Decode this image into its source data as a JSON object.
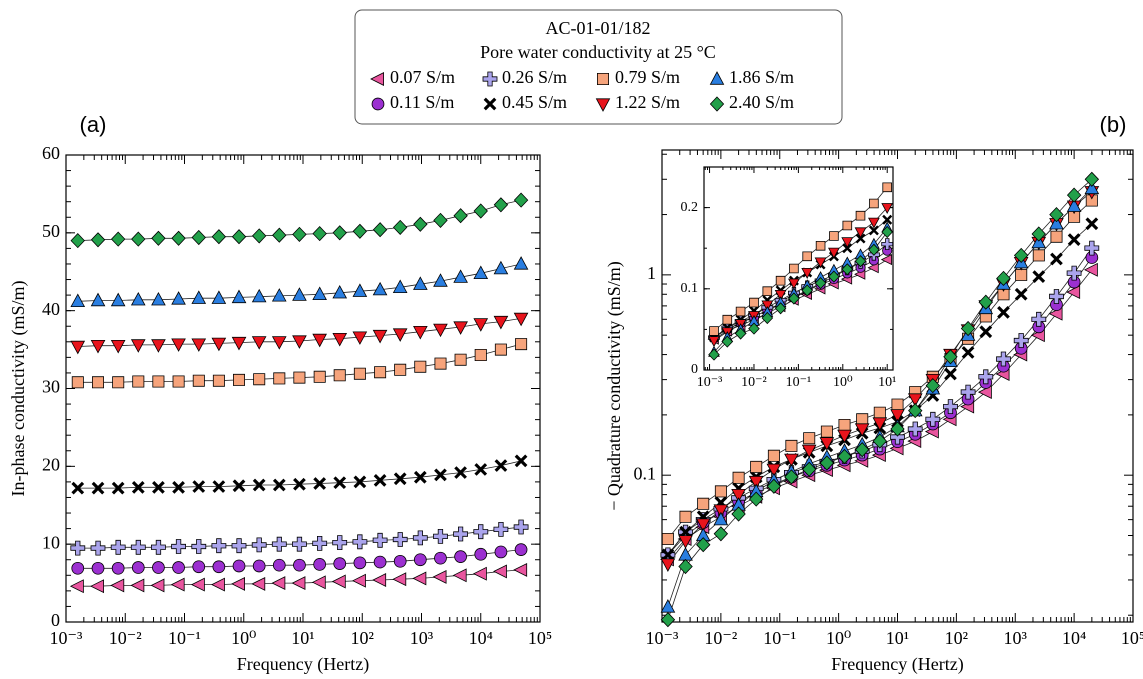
{
  "legend": {
    "title": "AC-01-01/182",
    "subtitle": "Pore water conductivity at 25 °C"
  },
  "chart_data": [
    {
      "type": "line",
      "label": "(a)",
      "xlabel": "Frequency (Hertz)",
      "ylabel": "In-phase conductivity (mS/m)",
      "xscale": "log",
      "xlim": [
        0.001,
        100000
      ],
      "xticks": [
        {
          "value": 0.001,
          "label": "10⁻³"
        },
        {
          "value": 0.01,
          "label": "10⁻²"
        },
        {
          "value": 0.1,
          "label": "10⁻¹"
        },
        {
          "value": 1,
          "label": "10⁰"
        },
        {
          "value": 10,
          "label": "10¹"
        },
        {
          "value": 100,
          "label": "10²"
        },
        {
          "value": 1000,
          "label": "10³"
        },
        {
          "value": 10000,
          "label": "10⁴"
        },
        {
          "value": 100000,
          "label": "10⁵"
        }
      ],
      "ylim": [
        0,
        60
      ],
      "yticks": [
        0,
        10,
        20,
        30,
        40,
        50,
        60
      ],
      "x": [
        0.00158,
        0.00347,
        0.00759,
        0.0166,
        0.0363,
        0.0794,
        0.174,
        0.38,
        0.832,
        1.82,
        3.98,
        8.71,
        19.1,
        41.7,
        91.2,
        200,
        437,
        955,
        2090,
        4570,
        10000,
        21900,
        47900
      ],
      "series": [
        {
          "name": "0.07 S/m",
          "color": "#e8559e",
          "marker": "triangle-left",
          "values": [
            4.6,
            4.6,
            4.7,
            4.7,
            4.7,
            4.8,
            4.8,
            4.8,
            4.9,
            4.9,
            5.0,
            5.0,
            5.1,
            5.2,
            5.3,
            5.4,
            5.5,
            5.6,
            5.8,
            6.0,
            6.2,
            6.5,
            6.7
          ]
        },
        {
          "name": "0.11 S/m",
          "color": "#9b30d0",
          "marker": "circle",
          "values": [
            6.9,
            6.9,
            6.9,
            7.0,
            7.0,
            7.0,
            7.1,
            7.1,
            7.2,
            7.2,
            7.3,
            7.3,
            7.4,
            7.5,
            7.6,
            7.7,
            7.8,
            8.0,
            8.2,
            8.4,
            8.7,
            9.0,
            9.3
          ]
        },
        {
          "name": "0.26 S/m",
          "color": "#aaa4ec",
          "marker": "plus",
          "values": [
            9.5,
            9.5,
            9.6,
            9.6,
            9.6,
            9.7,
            9.7,
            9.8,
            9.8,
            9.9,
            10.0,
            10.0,
            10.1,
            10.2,
            10.3,
            10.5,
            10.6,
            10.8,
            11.0,
            11.3,
            11.6,
            11.9,
            12.2
          ]
        },
        {
          "name": "0.45 S/m",
          "color": "#000000",
          "marker": "x",
          "values": [
            17.2,
            17.2,
            17.2,
            17.3,
            17.3,
            17.3,
            17.4,
            17.4,
            17.5,
            17.6,
            17.6,
            17.7,
            17.8,
            17.9,
            18.0,
            18.2,
            18.4,
            18.6,
            18.9,
            19.2,
            19.6,
            20.1,
            20.7
          ]
        },
        {
          "name": "0.79 S/m",
          "color": "#f6a47c",
          "marker": "square",
          "values": [
            30.8,
            30.8,
            30.8,
            30.9,
            30.9,
            30.9,
            31.0,
            31.0,
            31.1,
            31.2,
            31.3,
            31.4,
            31.5,
            31.7,
            31.9,
            32.1,
            32.4,
            32.8,
            33.2,
            33.7,
            34.3,
            35.0,
            35.7
          ]
        },
        {
          "name": "1.22 S/m",
          "color": "#e8141c",
          "marker": "triangle-down",
          "values": [
            35.4,
            35.5,
            35.5,
            35.6,
            35.6,
            35.7,
            35.7,
            35.8,
            35.9,
            36.0,
            36.0,
            36.1,
            36.3,
            36.4,
            36.6,
            36.8,
            37.0,
            37.3,
            37.6,
            37.9,
            38.3,
            38.6,
            39.0
          ]
        },
        {
          "name": "1.86 S/m",
          "color": "#2a7ee0",
          "marker": "triangle-up",
          "values": [
            41.2,
            41.3,
            41.3,
            41.4,
            41.4,
            41.5,
            41.6,
            41.6,
            41.7,
            41.8,
            41.9,
            42.0,
            42.1,
            42.3,
            42.5,
            42.7,
            43.0,
            43.4,
            43.8,
            44.3,
            44.8,
            45.4,
            46.0
          ]
        },
        {
          "name": "2.40 S/m",
          "color": "#22a04a",
          "marker": "diamond",
          "values": [
            49.0,
            49.1,
            49.2,
            49.2,
            49.3,
            49.3,
            49.4,
            49.5,
            49.5,
            49.6,
            49.7,
            49.8,
            49.9,
            50.0,
            50.2,
            50.4,
            50.7,
            51.1,
            51.6,
            52.2,
            52.8,
            53.6,
            54.2
          ]
        }
      ]
    },
    {
      "type": "line",
      "label": "(b)",
      "xlabel": "Frequency (Hertz)",
      "ylabel": "− Quadrature conductivity (mS/m)",
      "xscale": "log",
      "yscale": "log",
      "xlim": [
        0.001,
        100000
      ],
      "xticks": [
        {
          "value": 0.001,
          "label": "10⁻³"
        },
        {
          "value": 0.01,
          "label": "10⁻²"
        },
        {
          "value": 0.1,
          "label": "10⁻¹"
        },
        {
          "value": 1,
          "label": "10⁰"
        },
        {
          "value": 10,
          "label": "10¹"
        },
        {
          "value": 100,
          "label": "10²"
        },
        {
          "value": 1000,
          "label": "10³"
        },
        {
          "value": 10000,
          "label": "10⁴"
        },
        {
          "value": 100000,
          "label": "10⁵"
        }
      ],
      "ylim": [
        0.0185,
        4.2
      ],
      "yticks": [
        0.1,
        1
      ],
      "x": [
        0.00126,
        0.00251,
        0.00501,
        0.01,
        0.02,
        0.0398,
        0.0794,
        0.158,
        0.316,
        0.631,
        1.26,
        2.51,
        5.01,
        10,
        20,
        39.8,
        79.4,
        158,
        316,
        631,
        1260,
        2510,
        5010,
        10000,
        20000
      ],
      "series": [
        {
          "values": [
            0.038,
            0.048,
            0.055,
            0.062,
            0.07,
            0.078,
            0.086,
            0.093,
            0.1,
            0.106,
            0.112,
            0.118,
            0.126,
            0.136,
            0.148,
            0.165,
            0.19,
            0.22,
            0.26,
            0.32,
            0.4,
            0.5,
            0.64,
            0.82,
            1.06
          ]
        },
        {
          "values": [
            0.04,
            0.05,
            0.058,
            0.065,
            0.074,
            0.082,
            0.09,
            0.098,
            0.105,
            0.112,
            0.119,
            0.126,
            0.135,
            0.147,
            0.16,
            0.18,
            0.205,
            0.24,
            0.29,
            0.35,
            0.43,
            0.55,
            0.71,
            0.92,
            1.22
          ]
        },
        {
          "values": [
            0.04,
            0.052,
            0.06,
            0.068,
            0.077,
            0.086,
            0.095,
            0.103,
            0.11,
            0.117,
            0.124,
            0.132,
            0.142,
            0.155,
            0.17,
            0.19,
            0.22,
            0.26,
            0.31,
            0.38,
            0.47,
            0.6,
            0.78,
            1.02,
            1.36
          ]
        },
        {
          "values": [
            0.04,
            0.052,
            0.062,
            0.073,
            0.086,
            0.098,
            0.11,
            0.12,
            0.13,
            0.14,
            0.15,
            0.162,
            0.172,
            0.185,
            0.21,
            0.25,
            0.32,
            0.41,
            0.52,
            0.65,
            0.8,
            0.98,
            1.2,
            1.5,
            1.8
          ]
        },
        {
          "values": [
            0.048,
            0.062,
            0.072,
            0.083,
            0.097,
            0.11,
            0.125,
            0.14,
            0.153,
            0.165,
            0.178,
            0.19,
            0.205,
            0.225,
            0.26,
            0.31,
            0.38,
            0.48,
            0.62,
            0.8,
            1.0,
            1.25,
            1.55,
            1.95,
            2.35
          ]
        },
        {
          "values": [
            0.036,
            0.047,
            0.057,
            0.067,
            0.08,
            0.093,
            0.107,
            0.12,
            0.133,
            0.145,
            0.158,
            0.17,
            0.182,
            0.2,
            0.24,
            0.3,
            0.4,
            0.53,
            0.7,
            0.9,
            1.15,
            1.45,
            1.8,
            2.2,
            2.6
          ]
        },
        {
          "values": [
            0.022,
            0.04,
            0.05,
            0.06,
            0.071,
            0.083,
            0.094,
            0.104,
            0.114,
            0.123,
            0.132,
            0.142,
            0.155,
            0.175,
            0.21,
            0.27,
            0.37,
            0.5,
            0.68,
            0.9,
            1.15,
            1.45,
            1.8,
            2.2,
            2.7
          ]
        },
        {
          "values": [
            0.019,
            0.035,
            0.045,
            0.051,
            0.064,
            0.076,
            0.088,
            0.098,
            0.107,
            0.115,
            0.124,
            0.134,
            0.148,
            0.17,
            0.21,
            0.28,
            0.39,
            0.54,
            0.73,
            0.96,
            1.25,
            1.6,
            2.0,
            2.5,
            3.0
          ]
        }
      ]
    },
    {
      "type": "inset",
      "xscale": "log",
      "xlim": [
        0.00075,
        13.5
      ],
      "xticks": [
        {
          "value": 0.001,
          "label": "10⁻³"
        },
        {
          "value": 0.01,
          "label": "10⁻²"
        },
        {
          "value": 0.1,
          "label": "10⁻¹"
        },
        {
          "value": 1,
          "label": "10⁰"
        },
        {
          "value": 10,
          "label": "10¹"
        }
      ],
      "ylim": [
        0,
        0.25
      ],
      "yticks": [
        0,
        0.1,
        0.2
      ]
    }
  ]
}
